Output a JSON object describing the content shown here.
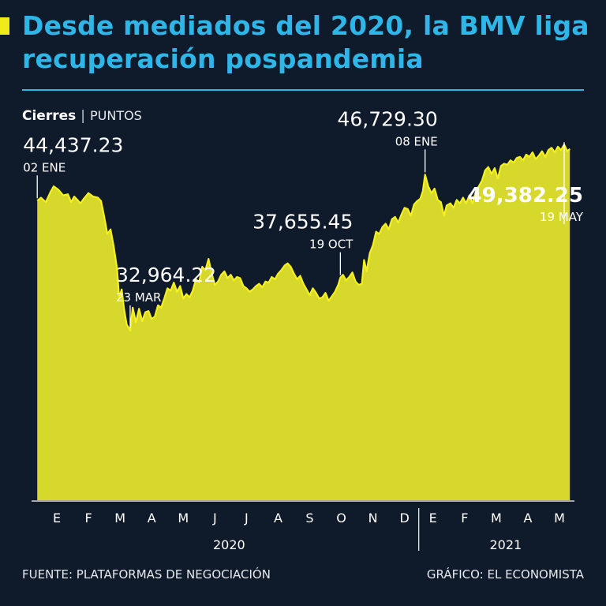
{
  "header": {
    "title": "Desde mediados del 2020, la BMV liga recuperación pospandemia",
    "subtitle_main": "Cierres",
    "subtitle_separator": "|",
    "subtitle_unit": "PUNTOS"
  },
  "footer": {
    "source": "FUENTE: PLATAFORMAS DE NEGOCIACIÓN",
    "credit": "GRÁFICO: EL ECONOMISTA"
  },
  "colors": {
    "background": "#0f1a2a",
    "title": "#2fb6e9",
    "accent": "#f1ea1a",
    "area_fill": "#d6d82c",
    "line": "#f6f01e"
  },
  "chart_data": {
    "type": "area",
    "title": "Cierres",
    "ylabel": "PUNTOS",
    "ylim": [
      18000,
      51000
    ],
    "grid": false,
    "months": [
      {
        "label": "E",
        "x": 0.5
      },
      {
        "label": "F",
        "x": 1.5
      },
      {
        "label": "M",
        "x": 2.5
      },
      {
        "label": "A",
        "x": 3.5
      },
      {
        "label": "M",
        "x": 4.5
      },
      {
        "label": "J",
        "x": 5.5
      },
      {
        "label": "J",
        "x": 6.5
      },
      {
        "label": "A",
        "x": 7.5
      },
      {
        "label": "S",
        "x": 8.5
      },
      {
        "label": "O",
        "x": 9.5
      },
      {
        "label": "N",
        "x": 10.5
      },
      {
        "label": "D",
        "x": 11.5
      },
      {
        "label": "E",
        "x": 12.5
      },
      {
        "label": "F",
        "x": 13.5
      },
      {
        "label": "M",
        "x": 14.5
      },
      {
        "label": "A",
        "x": 15.5
      },
      {
        "label": "M",
        "x": 16.5
      }
    ],
    "years": [
      {
        "label": "2020",
        "x": 6
      },
      {
        "label": "2021",
        "x": 14.75
      }
    ],
    "year_divider_x": 12,
    "x_domain": [
      0,
      16.9
    ],
    "series": [
      {
        "values": [
          [
            0.03,
            44437
          ],
          [
            0.15,
            44700
          ],
          [
            0.3,
            44300
          ],
          [
            0.45,
            45200
          ],
          [
            0.55,
            45700
          ],
          [
            0.7,
            45400
          ],
          [
            0.85,
            44900
          ],
          [
            1.0,
            45000
          ],
          [
            1.1,
            44300
          ],
          [
            1.2,
            44800
          ],
          [
            1.3,
            44500
          ],
          [
            1.4,
            44200
          ],
          [
            1.5,
            44600
          ],
          [
            1.65,
            45100
          ],
          [
            1.8,
            44800
          ],
          [
            1.95,
            44700
          ],
          [
            2.05,
            44400
          ],
          [
            2.15,
            43000
          ],
          [
            2.25,
            41500
          ],
          [
            2.35,
            41900
          ],
          [
            2.45,
            40400
          ],
          [
            2.55,
            38500
          ],
          [
            2.62,
            35900
          ],
          [
            2.7,
            36600
          ],
          [
            2.78,
            34800
          ],
          [
            2.86,
            33500
          ],
          [
            2.93,
            33200
          ],
          [
            2.97,
            32964
          ],
          [
            3.05,
            35000
          ],
          [
            3.15,
            33700
          ],
          [
            3.25,
            34900
          ],
          [
            3.35,
            33800
          ],
          [
            3.45,
            34600
          ],
          [
            3.55,
            34700
          ],
          [
            3.65,
            34000
          ],
          [
            3.75,
            34200
          ],
          [
            3.85,
            35200
          ],
          [
            3.95,
            35000
          ],
          [
            4.05,
            35800
          ],
          [
            4.15,
            36700
          ],
          [
            4.25,
            36500
          ],
          [
            4.35,
            37200
          ],
          [
            4.45,
            36400
          ],
          [
            4.55,
            36900
          ],
          [
            4.65,
            35800
          ],
          [
            4.75,
            36200
          ],
          [
            4.85,
            35900
          ],
          [
            4.95,
            36500
          ],
          [
            5.05,
            37500
          ],
          [
            5.15,
            37200
          ],
          [
            5.25,
            38600
          ],
          [
            5.35,
            38300
          ],
          [
            5.45,
            39300
          ],
          [
            5.55,
            38000
          ],
          [
            5.65,
            37000
          ],
          [
            5.75,
            37300
          ],
          [
            5.85,
            37900
          ],
          [
            5.95,
            38200
          ],
          [
            6.05,
            37600
          ],
          [
            6.15,
            37900
          ],
          [
            6.25,
            37400
          ],
          [
            6.35,
            37700
          ],
          [
            6.45,
            37600
          ],
          [
            6.55,
            36900
          ],
          [
            6.65,
            36700
          ],
          [
            6.75,
            36400
          ],
          [
            6.85,
            36600
          ],
          [
            6.95,
            36900
          ],
          [
            7.05,
            37100
          ],
          [
            7.15,
            36800
          ],
          [
            7.25,
            37300
          ],
          [
            7.35,
            37200
          ],
          [
            7.45,
            37700
          ],
          [
            7.55,
            37500
          ],
          [
            7.65,
            38000
          ],
          [
            7.75,
            38300
          ],
          [
            7.85,
            38700
          ],
          [
            7.95,
            38900
          ],
          [
            8.05,
            38600
          ],
          [
            8.15,
            38000
          ],
          [
            8.25,
            37500
          ],
          [
            8.35,
            37800
          ],
          [
            8.45,
            37100
          ],
          [
            8.55,
            36600
          ],
          [
            8.65,
            36100
          ],
          [
            8.75,
            36700
          ],
          [
            8.85,
            36300
          ],
          [
            8.95,
            35800
          ],
          [
            9.05,
            35900
          ],
          [
            9.15,
            36300
          ],
          [
            9.25,
            35600
          ],
          [
            9.35,
            36000
          ],
          [
            9.45,
            36400
          ],
          [
            9.55,
            37000
          ],
          [
            9.62,
            37655
          ],
          [
            9.7,
            37900
          ],
          [
            9.8,
            37400
          ],
          [
            9.9,
            37700
          ],
          [
            10.0,
            38100
          ],
          [
            10.1,
            37300
          ],
          [
            10.2,
            37000
          ],
          [
            10.3,
            37100
          ],
          [
            10.37,
            39200
          ],
          [
            10.45,
            38200
          ],
          [
            10.55,
            39800
          ],
          [
            10.65,
            40500
          ],
          [
            10.75,
            41700
          ],
          [
            10.85,
            41500
          ],
          [
            10.95,
            42100
          ],
          [
            11.05,
            42400
          ],
          [
            11.15,
            41900
          ],
          [
            11.25,
            42800
          ],
          [
            11.35,
            43000
          ],
          [
            11.45,
            42500
          ],
          [
            11.55,
            43200
          ],
          [
            11.65,
            43800
          ],
          [
            11.75,
            43700
          ],
          [
            11.85,
            43100
          ],
          [
            11.95,
            44100
          ],
          [
            12.05,
            44400
          ],
          [
            12.15,
            44600
          ],
          [
            12.23,
            45300
          ],
          [
            12.3,
            46729
          ],
          [
            12.4,
            45700
          ],
          [
            12.5,
            45100
          ],
          [
            12.6,
            45500
          ],
          [
            12.7,
            44500
          ],
          [
            12.8,
            44300
          ],
          [
            12.9,
            43100
          ],
          [
            12.98,
            44000
          ],
          [
            13.1,
            44200
          ],
          [
            13.2,
            43800
          ],
          [
            13.3,
            44500
          ],
          [
            13.4,
            44200
          ],
          [
            13.5,
            44700
          ],
          [
            13.6,
            44200
          ],
          [
            13.7,
            44900
          ],
          [
            13.8,
            44200
          ],
          [
            13.9,
            45200
          ],
          [
            14.0,
            45700
          ],
          [
            14.1,
            46200
          ],
          [
            14.2,
            47100
          ],
          [
            14.3,
            47400
          ],
          [
            14.4,
            46800
          ],
          [
            14.5,
            47300
          ],
          [
            14.6,
            46400
          ],
          [
            14.7,
            47500
          ],
          [
            14.8,
            47700
          ],
          [
            14.9,
            47600
          ],
          [
            15.0,
            48000
          ],
          [
            15.1,
            47800
          ],
          [
            15.2,
            48200
          ],
          [
            15.3,
            48300
          ],
          [
            15.4,
            48000
          ],
          [
            15.5,
            48500
          ],
          [
            15.6,
            48300
          ],
          [
            15.7,
            48700
          ],
          [
            15.8,
            48100
          ],
          [
            15.9,
            48400
          ],
          [
            16.0,
            48800
          ],
          [
            16.1,
            48300
          ],
          [
            16.2,
            48900
          ],
          [
            16.3,
            49100
          ],
          [
            16.4,
            48700
          ],
          [
            16.5,
            49200
          ],
          [
            16.6,
            48900
          ],
          [
            16.7,
            49382
          ],
          [
            16.8,
            48800
          ],
          [
            16.88,
            49000
          ]
        ]
      }
    ],
    "annotations": [
      {
        "value": "44,437.23",
        "date": "02 ENE",
        "x": 0.03,
        "y": 44437,
        "anchor": "start"
      },
      {
        "value": "32,964.22",
        "date": "23 MAR",
        "x": 2.97,
        "y": 32964,
        "anchor": "start"
      },
      {
        "value": "37,655.45",
        "date": "19 OCT",
        "x": 9.62,
        "y": 37655,
        "anchor": "end"
      },
      {
        "value": "46,729.30",
        "date": "08 ENE",
        "x": 12.3,
        "y": 46729,
        "anchor": "end"
      },
      {
        "value": "49,382.25",
        "date": "19 MAY",
        "x": 16.7,
        "y": 49382,
        "anchor": "end",
        "bold": true
      }
    ]
  }
}
